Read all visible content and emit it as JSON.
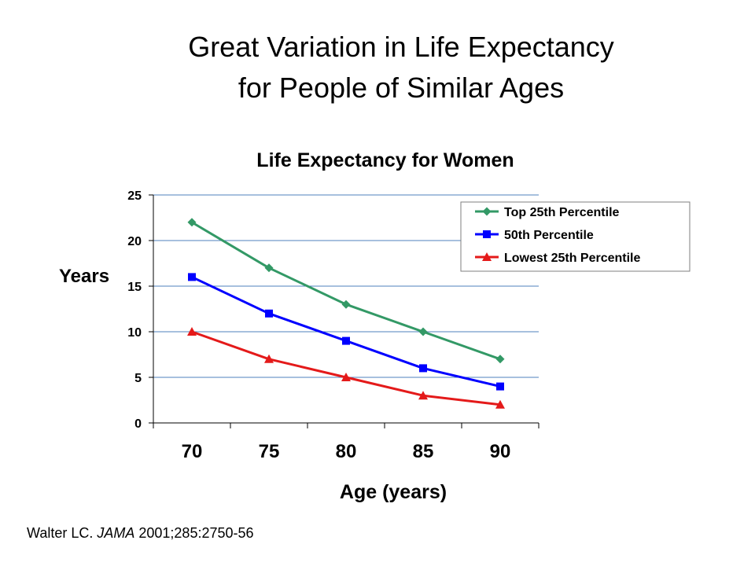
{
  "slide": {
    "title_line1": "Great Variation in Life Expectancy",
    "title_line2": "for People of Similar Ages"
  },
  "citation": {
    "authors": "Walter LC. ",
    "journal": "JAMA",
    "details": " 2001;285:2750-56"
  },
  "chart_data": {
    "type": "line",
    "title": "Life Expectancy for Women",
    "xlabel": "Age (years)",
    "ylabel": "Years",
    "categories": [
      "70",
      "75",
      "80",
      "85",
      "90"
    ],
    "ylim": [
      0,
      25
    ],
    "yticks": [
      0,
      5,
      10,
      15,
      20,
      25
    ],
    "grid": true,
    "legend_position": "top-right",
    "series": [
      {
        "name": "Top 25th Percentile",
        "color": "#339966",
        "marker": "diamond",
        "values": [
          22,
          17,
          13,
          10,
          7
        ]
      },
      {
        "name": "50th Percentile",
        "color": "#0000ff",
        "marker": "square",
        "values": [
          16,
          12,
          9,
          6,
          4
        ]
      },
      {
        "name": "Lowest 25th Percentile",
        "color": "#e41a1a",
        "marker": "triangle",
        "values": [
          10,
          7,
          5,
          3,
          2
        ]
      }
    ]
  }
}
